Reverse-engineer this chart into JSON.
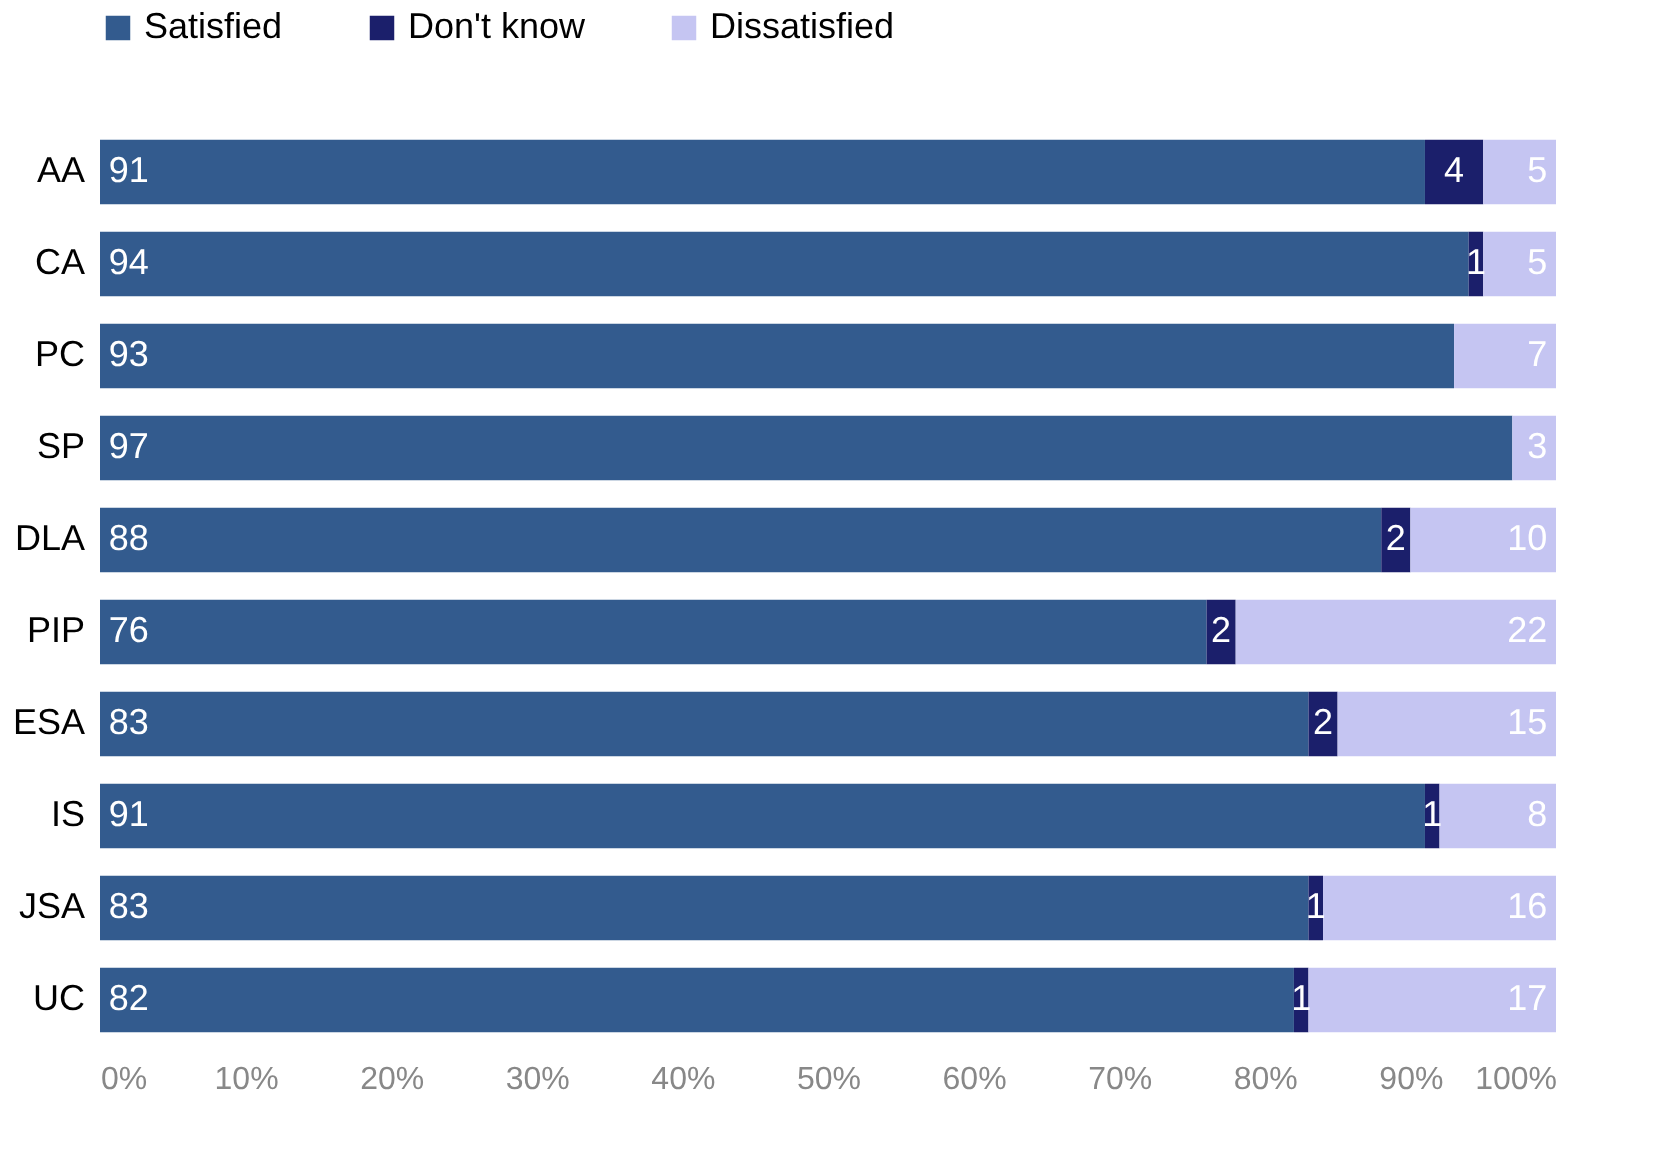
{
  "chart_data": {
    "type": "bar",
    "orientation": "horizontal",
    "stacked": true,
    "data_labels": true,
    "legend": "top",
    "grid": false,
    "categories": [
      "AA",
      "CA",
      "PC",
      "SP",
      "DLA",
      "PIP",
      "ESA",
      "IS",
      "JSA",
      "UC"
    ],
    "series": [
      {
        "name": "Satisfied",
        "color": "#335b8e",
        "values": [
          91,
          94,
          93,
          97,
          88,
          76,
          83,
          91,
          83,
          82
        ]
      },
      {
        "name": "Don't know",
        "color": "#1b1f6b",
        "values": [
          4,
          1,
          null,
          null,
          2,
          2,
          2,
          1,
          1,
          1
        ]
      },
      {
        "name": "Dissatisfied",
        "color": "#c5c5f2",
        "values": [
          5,
          5,
          7,
          3,
          10,
          22,
          15,
          8,
          16,
          17
        ]
      }
    ],
    "xlim": [
      0,
      100
    ],
    "xticks": [
      {
        "value": 0,
        "label": "0%"
      },
      {
        "value": 10,
        "label": "10%"
      },
      {
        "value": 20,
        "label": "20%"
      },
      {
        "value": 30,
        "label": "30%"
      },
      {
        "value": 40,
        "label": "40%"
      },
      {
        "value": 50,
        "label": "50%"
      },
      {
        "value": 60,
        "label": "60%"
      },
      {
        "value": 70,
        "label": "70%"
      },
      {
        "value": 80,
        "label": "80%"
      },
      {
        "value": 90,
        "label": "90%"
      },
      {
        "value": 100,
        "label": "100%"
      }
    ]
  }
}
